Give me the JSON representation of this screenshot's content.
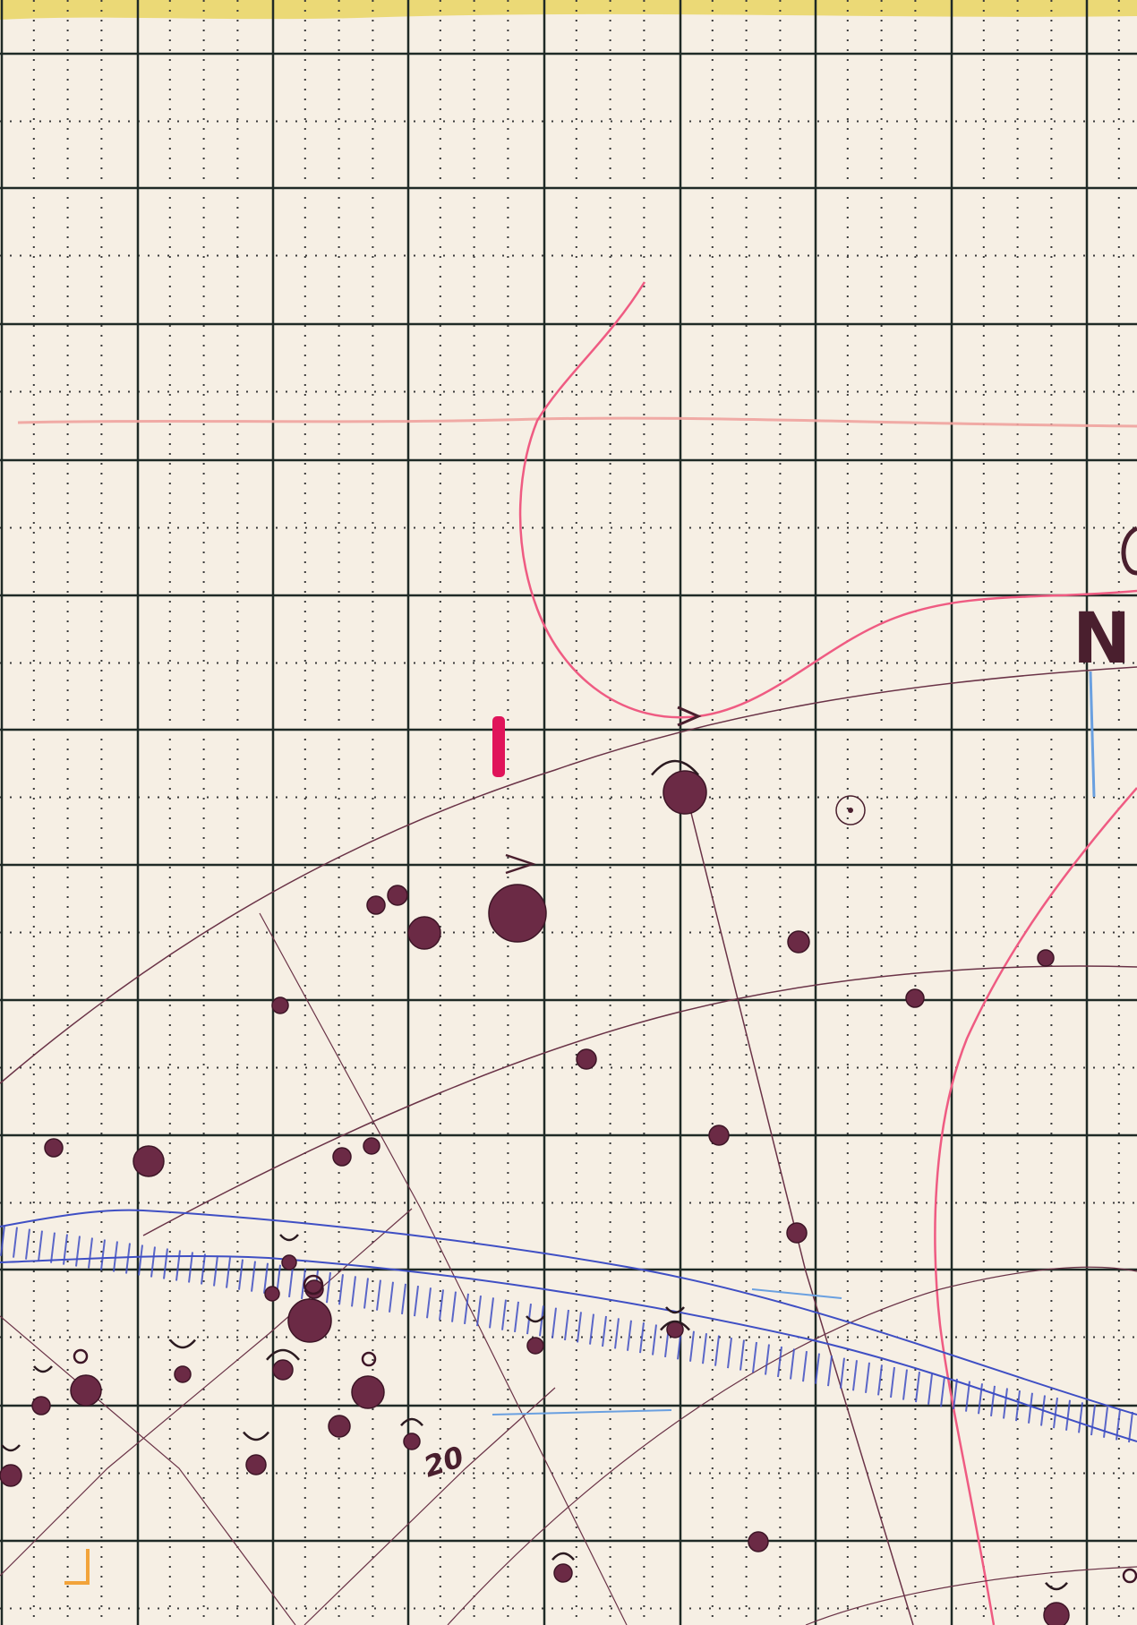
{
  "palette": {
    "paper": "#f6efe4",
    "grid_major": "#1f2a26",
    "grid_minor": "#3a3a3a",
    "ink_star": "#6b2a45",
    "ink_line": "#6a3347",
    "ink_pink": "#ef5b82",
    "ink_pink_faint": "#f0a29d",
    "ink_blue": "#3f4fc4",
    "ink_blue_light": "#6aa0e0",
    "ink_magenta": "#e0145a",
    "yellow_band": "#e8d35a",
    "orange_mark": "#f2a33a"
  },
  "annotations": {
    "compass_letter": "N",
    "number_label": "20"
  }
}
